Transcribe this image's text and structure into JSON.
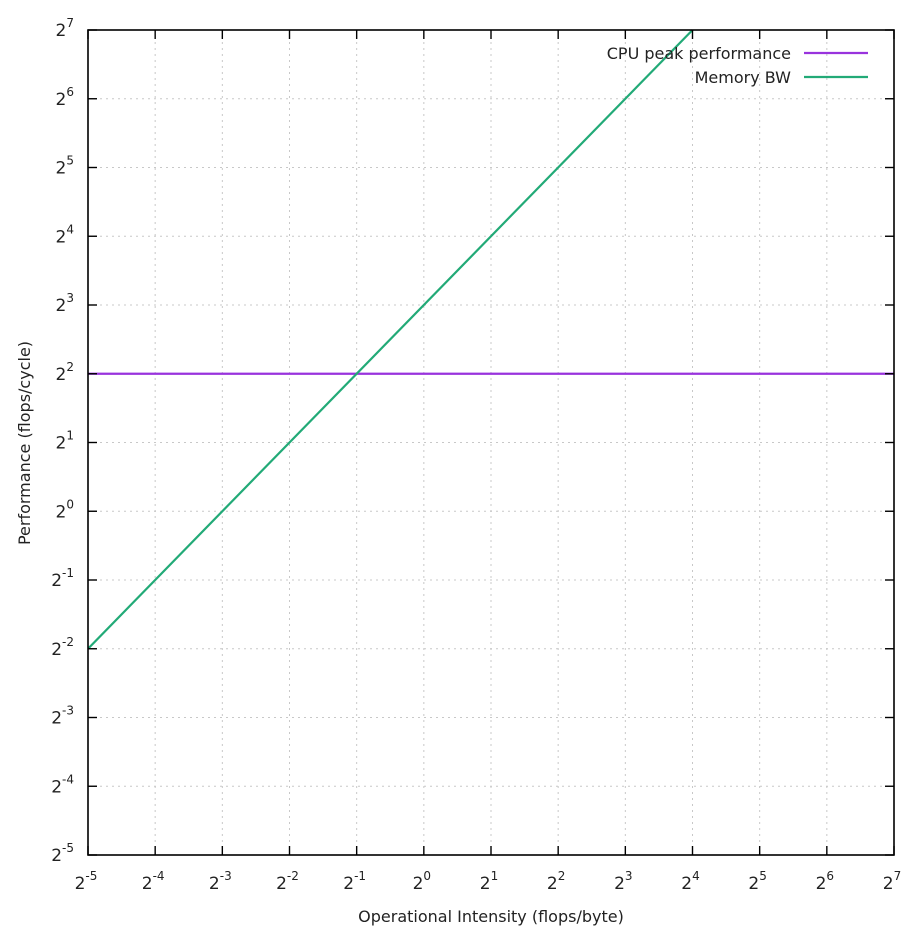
{
  "chart_data": {
    "type": "line",
    "xlabel": "Operational Intensity (flops/byte)",
    "ylabel": "Performance (flops/cycle)",
    "xscale": "log2",
    "yscale": "log2",
    "xlim": [
      0.03125,
      128
    ],
    "ylim": [
      0.03125,
      128
    ],
    "x_ticks": [
      {
        "base": "2",
        "exp": "-5",
        "value": 0.03125
      },
      {
        "base": "2",
        "exp": "-4",
        "value": 0.0625
      },
      {
        "base": "2",
        "exp": "-3",
        "value": 0.125
      },
      {
        "base": "2",
        "exp": "-2",
        "value": 0.25
      },
      {
        "base": "2",
        "exp": "-1",
        "value": 0.5
      },
      {
        "base": "2",
        "exp": "0",
        "value": 1
      },
      {
        "base": "2",
        "exp": "1",
        "value": 2
      },
      {
        "base": "2",
        "exp": "2",
        "value": 4
      },
      {
        "base": "2",
        "exp": "3",
        "value": 8
      },
      {
        "base": "2",
        "exp": "4",
        "value": 16
      },
      {
        "base": "2",
        "exp": "5",
        "value": 32
      },
      {
        "base": "2",
        "exp": "6",
        "value": 64
      },
      {
        "base": "2",
        "exp": "7",
        "value": 128
      }
    ],
    "y_ticks": [
      {
        "base": "2",
        "exp": "-5",
        "value": 0.03125
      },
      {
        "base": "2",
        "exp": "-4",
        "value": 0.0625
      },
      {
        "base": "2",
        "exp": "-3",
        "value": 0.125
      },
      {
        "base": "2",
        "exp": "-2",
        "value": 0.25
      },
      {
        "base": "2",
        "exp": "-1",
        "value": 0.5
      },
      {
        "base": "2",
        "exp": "0",
        "value": 1
      },
      {
        "base": "2",
        "exp": "1",
        "value": 2
      },
      {
        "base": "2",
        "exp": "2",
        "value": 4
      },
      {
        "base": "2",
        "exp": "3",
        "value": 8
      },
      {
        "base": "2",
        "exp": "4",
        "value": 16
      },
      {
        "base": "2",
        "exp": "5",
        "value": 32
      },
      {
        "base": "2",
        "exp": "6",
        "value": 64
      },
      {
        "base": "2",
        "exp": "7",
        "value": 128
      }
    ],
    "grid": true,
    "legend_position": "top-right",
    "series": [
      {
        "name": "CPU peak performance",
        "color": "#9933dd",
        "x": [
          0.03125,
          128
        ],
        "y": [
          4,
          4
        ]
      },
      {
        "name": "Memory BW",
        "color": "#22aa77",
        "x": [
          0.03125,
          16
        ],
        "y": [
          0.25,
          128
        ]
      }
    ]
  }
}
